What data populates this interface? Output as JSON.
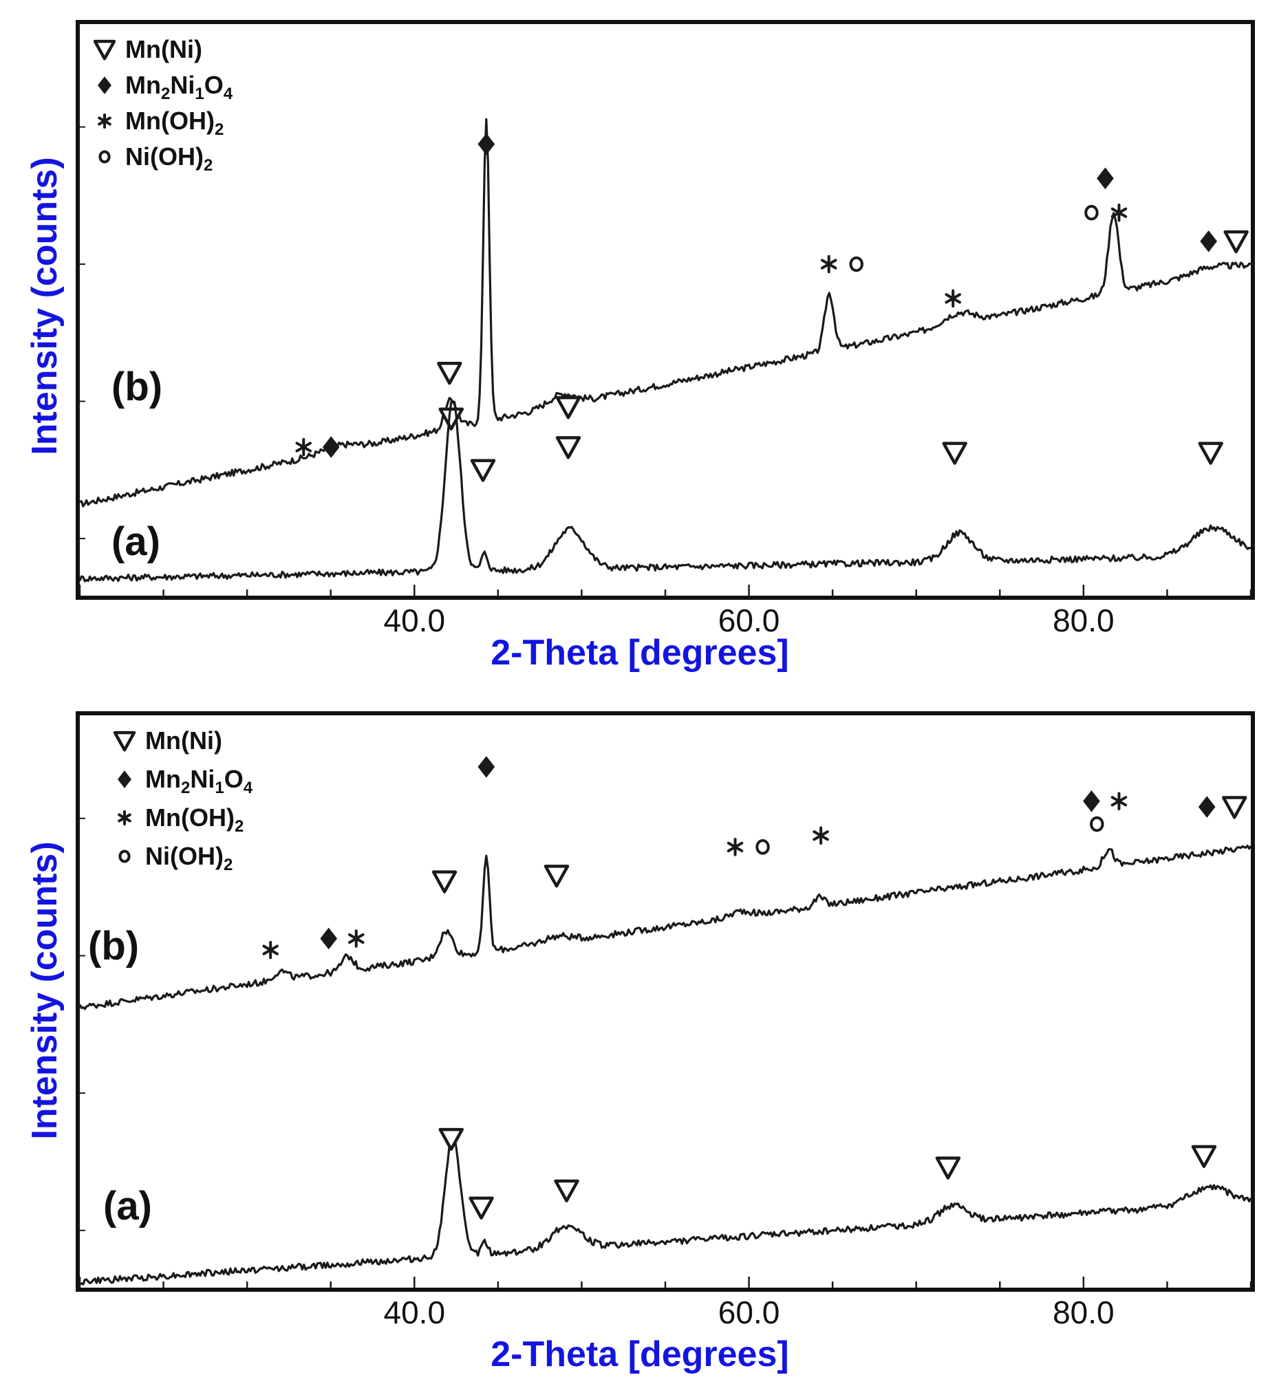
{
  "colors": {
    "axis_title": "#1414e0",
    "trace": "#1a1a1a",
    "frame": "#111111"
  },
  "chart_data": [
    {
      "type": "line",
      "panel": "top",
      "xlabel": "2-Theta [degrees]",
      "ylabel": "Intensity (counts)",
      "xlim": [
        20,
        90
      ],
      "xticks": [
        {
          "value": 40,
          "label": "40.0"
        },
        {
          "value": 60,
          "label": "60.0"
        },
        {
          "value": 80,
          "label": "80.0"
        }
      ],
      "ylim": [
        0,
        100
      ],
      "legend": [
        {
          "symbol": "triangle",
          "text": "Mn(Ni)",
          "parts": [
            {
              "t": "Mn(Ni)"
            }
          ]
        },
        {
          "symbol": "diamond",
          "text": "Mn2Ni1O4",
          "parts": [
            {
              "t": "Mn"
            },
            {
              "t": "2",
              "sub": true
            },
            {
              "t": "Ni"
            },
            {
              "t": "1",
              "sub": true
            },
            {
              "t": "O"
            },
            {
              "t": "4",
              "sub": true
            }
          ]
        },
        {
          "symbol": "asterisk",
          "text": "Mn(OH)2",
          "parts": [
            {
              "t": "Mn(OH)"
            },
            {
              "t": "2",
              "sub": true
            }
          ]
        },
        {
          "symbol": "circle",
          "text": "Ni(OH)2",
          "parts": [
            {
              "t": "Ni(OH)"
            },
            {
              "t": "2",
              "sub": true
            }
          ]
        }
      ],
      "series": [
        {
          "name": "(b)",
          "label": "(b)",
          "baseline": [
            [
              20,
              16
            ],
            [
              90,
              58
            ]
          ],
          "peaks": [
            [
              42.2,
              5,
              0.35
            ],
            [
              44.3,
              53,
              0.18
            ],
            [
              48.8,
              2,
              0.8
            ],
            [
              35.5,
              1,
              1.0
            ],
            [
              64.8,
              10,
              0.28
            ],
            [
              72.5,
              2,
              0.9
            ],
            [
              81.8,
              14,
              0.3
            ],
            [
              87.5,
              1,
              1.0
            ]
          ],
          "markers": [
            {
              "x": 34.2,
              "y": 26,
              "symbols": [
                "asterisk",
                "diamond"
              ]
            },
            {
              "x": 42.2,
              "y": 31,
              "symbols": [
                "triangle"
              ]
            },
            {
              "x": 44.3,
              "y": 79,
              "symbols": [
                "diamond"
              ]
            },
            {
              "x": 49.2,
              "y": 33,
              "symbols": [
                "triangle"
              ]
            },
            {
              "x": 65.6,
              "y": 58,
              "symbols": [
                "asterisk",
                "circle"
              ]
            },
            {
              "x": 72.2,
              "y": 52,
              "symbols": [
                "asterisk"
              ]
            },
            {
              "x": 81.3,
              "y": 73,
              "symbols": [
                "diamond"
              ]
            },
            {
              "x": 81.3,
              "y": 67,
              "symbols": [
                "circle",
                "asterisk"
              ]
            },
            {
              "x": 88.3,
              "y": 62,
              "symbols": [
                "diamond",
                "triangle"
              ]
            }
          ]
        },
        {
          "name": "(a)",
          "label": "(a)",
          "baseline": [
            [
              20,
              3
            ],
            [
              90,
              7
            ]
          ],
          "peaks": [
            [
              42.3,
              30,
              0.45
            ],
            [
              44.2,
              3,
              0.2
            ],
            [
              49.3,
              7,
              0.9
            ],
            [
              72.6,
              5,
              0.8
            ],
            [
              87.8,
              5,
              1.3
            ]
          ],
          "markers": [
            {
              "x": 42.1,
              "y": 39,
              "symbols": [
                "triangle"
              ]
            },
            {
              "x": 44.1,
              "y": 22,
              "symbols": [
                "triangle"
              ]
            },
            {
              "x": 49.2,
              "y": 26,
              "symbols": [
                "triangle"
              ]
            },
            {
              "x": 72.3,
              "y": 25,
              "symbols": [
                "triangle"
              ]
            },
            {
              "x": 87.6,
              "y": 25,
              "symbols": [
                "triangle"
              ]
            }
          ]
        }
      ]
    },
    {
      "type": "line",
      "panel": "bottom",
      "xlabel": "2-Theta [degrees]",
      "ylabel": "Intensity (counts)",
      "xlim": [
        20,
        90
      ],
      "xticks": [
        {
          "value": 40,
          "label": "40.0"
        },
        {
          "value": 60,
          "label": "60.0"
        },
        {
          "value": 80,
          "label": "80.0"
        }
      ],
      "ylim": [
        0,
        100
      ],
      "legend": [
        {
          "symbol": "triangle",
          "text": "Mn(Ni)",
          "parts": [
            {
              "t": "Mn(Ni)"
            }
          ]
        },
        {
          "symbol": "diamond",
          "text": "Mn2Ni1O4",
          "parts": [
            {
              "t": "Mn"
            },
            {
              "t": "2",
              "sub": true
            },
            {
              "t": "Ni"
            },
            {
              "t": "1",
              "sub": true
            },
            {
              "t": "O"
            },
            {
              "t": "4",
              "sub": true
            }
          ]
        },
        {
          "symbol": "asterisk",
          "text": "Mn(OH)2",
          "parts": [
            {
              "t": "Mn(OH)"
            },
            {
              "t": "2",
              "sub": true
            }
          ]
        },
        {
          "symbol": "circle",
          "text": "Ni(OH)2",
          "parts": [
            {
              "t": "Ni(OH)"
            },
            {
              "t": "2",
              "sub": true
            }
          ]
        }
      ],
      "series": [
        {
          "name": "(b)",
          "label": "(b)",
          "baseline": [
            [
              20,
              49
            ],
            [
              90,
              77
            ]
          ],
          "peaks": [
            [
              32.0,
              1.5,
              0.4
            ],
            [
              36.0,
              2.5,
              0.35
            ],
            [
              41.9,
              4.5,
              0.4
            ],
            [
              44.3,
              17,
              0.18
            ],
            [
              48.5,
              1,
              0.8
            ],
            [
              59.5,
              1,
              0.6
            ],
            [
              64.2,
              1.5,
              0.3
            ],
            [
              81.5,
              3,
              0.3
            ]
          ],
          "markers": [
            {
              "x": 31.4,
              "y": 59,
              "symbols": [
                "asterisk"
              ]
            },
            {
              "x": 35.7,
              "y": 61,
              "symbols": [
                "diamond",
                "asterisk"
              ]
            },
            {
              "x": 41.8,
              "y": 71,
              "symbols": [
                "triangle"
              ]
            },
            {
              "x": 44.3,
              "y": 91,
              "symbols": [
                "diamond"
              ]
            },
            {
              "x": 48.5,
              "y": 72,
              "symbols": [
                "triangle"
              ]
            },
            {
              "x": 60.0,
              "y": 77,
              "symbols": [
                "asterisk",
                "circle"
              ]
            },
            {
              "x": 64.3,
              "y": 79,
              "symbols": [
                "asterisk"
              ]
            },
            {
              "x": 80.8,
              "y": 81,
              "symbols": [
                "circle"
              ]
            },
            {
              "x": 81.3,
              "y": 85,
              "symbols": [
                "diamond",
                "asterisk"
              ]
            },
            {
              "x": 88.2,
              "y": 84,
              "symbols": [
                "diamond",
                "triangle"
              ]
            }
          ]
        },
        {
          "name": "(a)",
          "label": "(a)",
          "baseline": [
            [
              20,
              1
            ],
            [
              90,
              15
            ]
          ],
          "peaks": [
            [
              42.3,
              21,
              0.45
            ],
            [
              44.2,
              2,
              0.2
            ],
            [
              49.1,
              4,
              0.9
            ],
            [
              72.2,
              3,
              0.8
            ],
            [
              87.5,
              3,
              1.2
            ]
          ],
          "markers": [
            {
              "x": 42.2,
              "y": 26,
              "symbols": [
                "triangle"
              ]
            },
            {
              "x": 44.0,
              "y": 14,
              "symbols": [
                "triangle"
              ]
            },
            {
              "x": 49.1,
              "y": 17,
              "symbols": [
                "triangle"
              ]
            },
            {
              "x": 71.9,
              "y": 21,
              "symbols": [
                "triangle"
              ]
            },
            {
              "x": 87.2,
              "y": 23,
              "symbols": [
                "triangle"
              ]
            }
          ]
        }
      ]
    }
  ]
}
